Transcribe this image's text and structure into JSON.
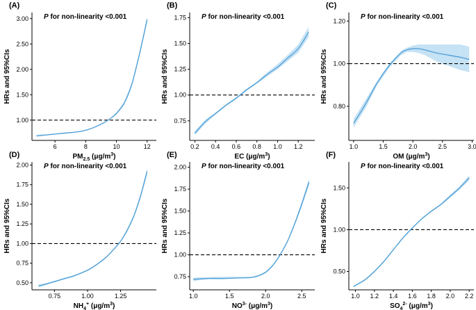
{
  "chart_data": [
    {
      "type": "line",
      "panel_label": "(A)",
      "annotation_prefix": "P",
      "annotation_rest": " for non-linearity <0.001",
      "ylabel": "HRs and 95%CIs",
      "xlabel_parts": [
        "PM",
        "2.5",
        " (μg/m",
        "3",
        ")"
      ],
      "xlim": [
        4.5,
        12.6
      ],
      "ylim": [
        0.6,
        3.12
      ],
      "xticks": [
        "6",
        "8",
        "10",
        "12"
      ],
      "yticks": [
        "1.00",
        "1.50",
        "2.00",
        "2.50",
        "3.00"
      ],
      "reference_line": 1.0,
      "x": [
        4.8,
        5.5,
        6.5,
        7.5,
        8.0,
        8.5,
        9.0,
        9.3,
        9.6,
        10.0,
        10.5,
        11.0,
        11.5,
        12.0
      ],
      "y": [
        0.69,
        0.71,
        0.74,
        0.77,
        0.8,
        0.85,
        0.92,
        0.97,
        1.03,
        1.13,
        1.33,
        1.7,
        2.3,
        2.98
      ],
      "ci_lower": [
        0.67,
        0.7,
        0.73,
        0.76,
        0.79,
        0.84,
        0.91,
        0.96,
        1.02,
        1.11,
        1.3,
        1.66,
        2.25,
        2.92
      ],
      "ci_upper": [
        0.71,
        0.72,
        0.75,
        0.78,
        0.81,
        0.86,
        0.93,
        0.98,
        1.04,
        1.15,
        1.36,
        1.74,
        2.35,
        3.04
      ]
    },
    {
      "type": "line",
      "panel_label": "(B)",
      "annotation_prefix": "P",
      "annotation_rest": " for non-linearity <0.001",
      "ylabel": "HRs and 95%CIs",
      "xlabel_parts": [
        "EC (μg/m",
        "3",
        ")"
      ],
      "xlim": [
        0.15,
        1.36
      ],
      "ylim": [
        0.56,
        1.8
      ],
      "xticks": [
        "0.2",
        "0.4",
        "0.6",
        "0.8",
        "1.0",
        "1.2"
      ],
      "yticks": [
        "0.75",
        "1.00",
        "1.25",
        "1.50",
        "1.75"
      ],
      "reference_line": 1.0,
      "x": [
        0.2,
        0.3,
        0.4,
        0.5,
        0.6,
        0.7,
        0.8,
        0.9,
        1.0,
        1.1,
        1.2,
        1.3
      ],
      "y": [
        0.63,
        0.74,
        0.82,
        0.9,
        0.97,
        1.05,
        1.12,
        1.2,
        1.27,
        1.36,
        1.45,
        1.61
      ],
      "ci_lower": [
        0.61,
        0.72,
        0.81,
        0.89,
        0.96,
        1.04,
        1.11,
        1.18,
        1.25,
        1.33,
        1.41,
        1.56
      ],
      "ci_upper": [
        0.65,
        0.76,
        0.83,
        0.91,
        0.98,
        1.06,
        1.13,
        1.22,
        1.3,
        1.39,
        1.49,
        1.66
      ]
    },
    {
      "type": "line",
      "panel_label": "(C)",
      "annotation_prefix": "P",
      "annotation_rest": " for non-linearity <0.001",
      "ylabel": "HRs and 95%CIs",
      "xlabel_parts": [
        "OM (μg/m",
        "3",
        ")"
      ],
      "xlim": [
        0.92,
        3.03
      ],
      "ylim": [
        0.64,
        1.24
      ],
      "xticks": [
        "1.0",
        "1.5",
        "2.0",
        "2.5",
        "3.0"
      ],
      "yticks": [
        "0.80",
        "1.00",
        "1.20"
      ],
      "reference_line": 1.0,
      "x": [
        1.0,
        1.2,
        1.4,
        1.6,
        1.8,
        1.9,
        2.0,
        2.1,
        2.2,
        2.4,
        2.6,
        2.8,
        2.95
      ],
      "y": [
        0.72,
        0.81,
        0.91,
        0.99,
        1.05,
        1.065,
        1.07,
        1.07,
        1.065,
        1.05,
        1.04,
        1.03,
        1.02
      ],
      "ci_lower": [
        0.7,
        0.79,
        0.9,
        0.98,
        1.04,
        1.055,
        1.055,
        1.05,
        1.04,
        1.01,
        0.99,
        0.97,
        0.96
      ],
      "ci_upper": [
        0.74,
        0.83,
        0.92,
        1.0,
        1.06,
        1.075,
        1.085,
        1.09,
        1.09,
        1.09,
        1.09,
        1.09,
        1.08
      ]
    },
    {
      "type": "line",
      "panel_label": "(D)",
      "annotation_prefix": "P",
      "annotation_rest": " for non-linearity <0.001",
      "ylabel": "HRs and 95%CIs",
      "xlabel_parts": [
        "NH",
        "4",
        "+",
        " (μg/m",
        "3",
        ")"
      ],
      "xlim": [
        0.58,
        1.52
      ],
      "ylim": [
        0.41,
        2.04
      ],
      "xticks": [
        "0.75",
        "1.00",
        "1.25"
      ],
      "yticks": [
        "0.50",
        "0.75",
        "1.00",
        "1.25",
        "1.50",
        "1.75",
        "2.00"
      ],
      "reference_line": 1.0,
      "x": [
        0.63,
        0.7,
        0.8,
        0.9,
        1.0,
        1.05,
        1.1,
        1.15,
        1.2,
        1.25,
        1.3,
        1.35,
        1.4,
        1.45
      ],
      "y": [
        0.46,
        0.49,
        0.54,
        0.59,
        0.66,
        0.71,
        0.77,
        0.84,
        0.93,
        1.03,
        1.17,
        1.35,
        1.6,
        1.92
      ],
      "ci_lower": [
        0.44,
        0.48,
        0.53,
        0.58,
        0.65,
        0.7,
        0.76,
        0.83,
        0.92,
        1.02,
        1.15,
        1.33,
        1.57,
        1.88
      ],
      "ci_upper": [
        0.48,
        0.5,
        0.55,
        0.6,
        0.67,
        0.72,
        0.78,
        0.85,
        0.94,
        1.04,
        1.19,
        1.37,
        1.63,
        1.96
      ]
    },
    {
      "type": "line",
      "panel_label": "(E)",
      "annotation_prefix": "P",
      "annotation_rest": " for non-linearity <0.001",
      "ylabel": "HRs and 95%CIs",
      "xlabel_parts": [
        "NO",
        "3",
        "-",
        " (μg/m",
        "3",
        ")"
      ],
      "xlim": [
        0.95,
        2.68
      ],
      "ylim": [
        0.6,
        2.06
      ],
      "xticks": [
        "1.0",
        "1.5",
        "2.0",
        "2.5"
      ],
      "yticks": [
        "0.75",
        "1.00",
        "1.25",
        "1.50",
        "1.75",
        "2.00"
      ],
      "reference_line": 1.0,
      "x": [
        1.0,
        1.2,
        1.4,
        1.6,
        1.8,
        1.9,
        2.0,
        2.1,
        2.2,
        2.3,
        2.4,
        2.5,
        2.6
      ],
      "y": [
        0.72,
        0.73,
        0.73,
        0.735,
        0.74,
        0.76,
        0.8,
        0.88,
        1.0,
        1.15,
        1.35,
        1.58,
        1.83
      ],
      "ci_lower": [
        0.7,
        0.72,
        0.72,
        0.73,
        0.735,
        0.755,
        0.79,
        0.87,
        0.99,
        1.14,
        1.33,
        1.55,
        1.79
      ],
      "ci_upper": [
        0.74,
        0.745,
        0.75,
        0.75,
        0.75,
        0.77,
        0.81,
        0.89,
        1.01,
        1.16,
        1.37,
        1.61,
        1.87
      ]
    },
    {
      "type": "line",
      "panel_label": "(F)",
      "annotation_prefix": "P",
      "annotation_rest": " for non-linearity <0.001",
      "ylabel": "HRs and 95%CIs",
      "xlabel_parts": [
        "SO",
        "4",
        "2-",
        " (μg/m",
        "3",
        ")"
      ],
      "xlim": [
        0.93,
        2.25
      ],
      "ylim": [
        0.28,
        1.81
      ],
      "xticks": [
        "1.0",
        "1.2",
        "1.4",
        "1.6",
        "1.8",
        "2.0",
        "2.2"
      ],
      "yticks": [
        "0.50",
        "1.00",
        "1.50"
      ],
      "reference_line": 1.0,
      "x": [
        0.98,
        1.1,
        1.2,
        1.3,
        1.4,
        1.5,
        1.6,
        1.7,
        1.8,
        1.9,
        2.0,
        2.1,
        2.2
      ],
      "y": [
        0.32,
        0.4,
        0.5,
        0.62,
        0.76,
        0.9,
        1.02,
        1.13,
        1.22,
        1.3,
        1.4,
        1.5,
        1.62
      ],
      "ci_lower": [
        0.31,
        0.39,
        0.49,
        0.61,
        0.75,
        0.89,
        1.01,
        1.12,
        1.21,
        1.29,
        1.38,
        1.48,
        1.59
      ],
      "ci_upper": [
        0.33,
        0.41,
        0.51,
        0.63,
        0.77,
        0.91,
        1.03,
        1.14,
        1.23,
        1.31,
        1.42,
        1.52,
        1.65
      ]
    }
  ],
  "colors": {
    "line": "#4e9fd6",
    "band": "#c6e2f5",
    "axis": "#000000",
    "reference": "#000000"
  }
}
